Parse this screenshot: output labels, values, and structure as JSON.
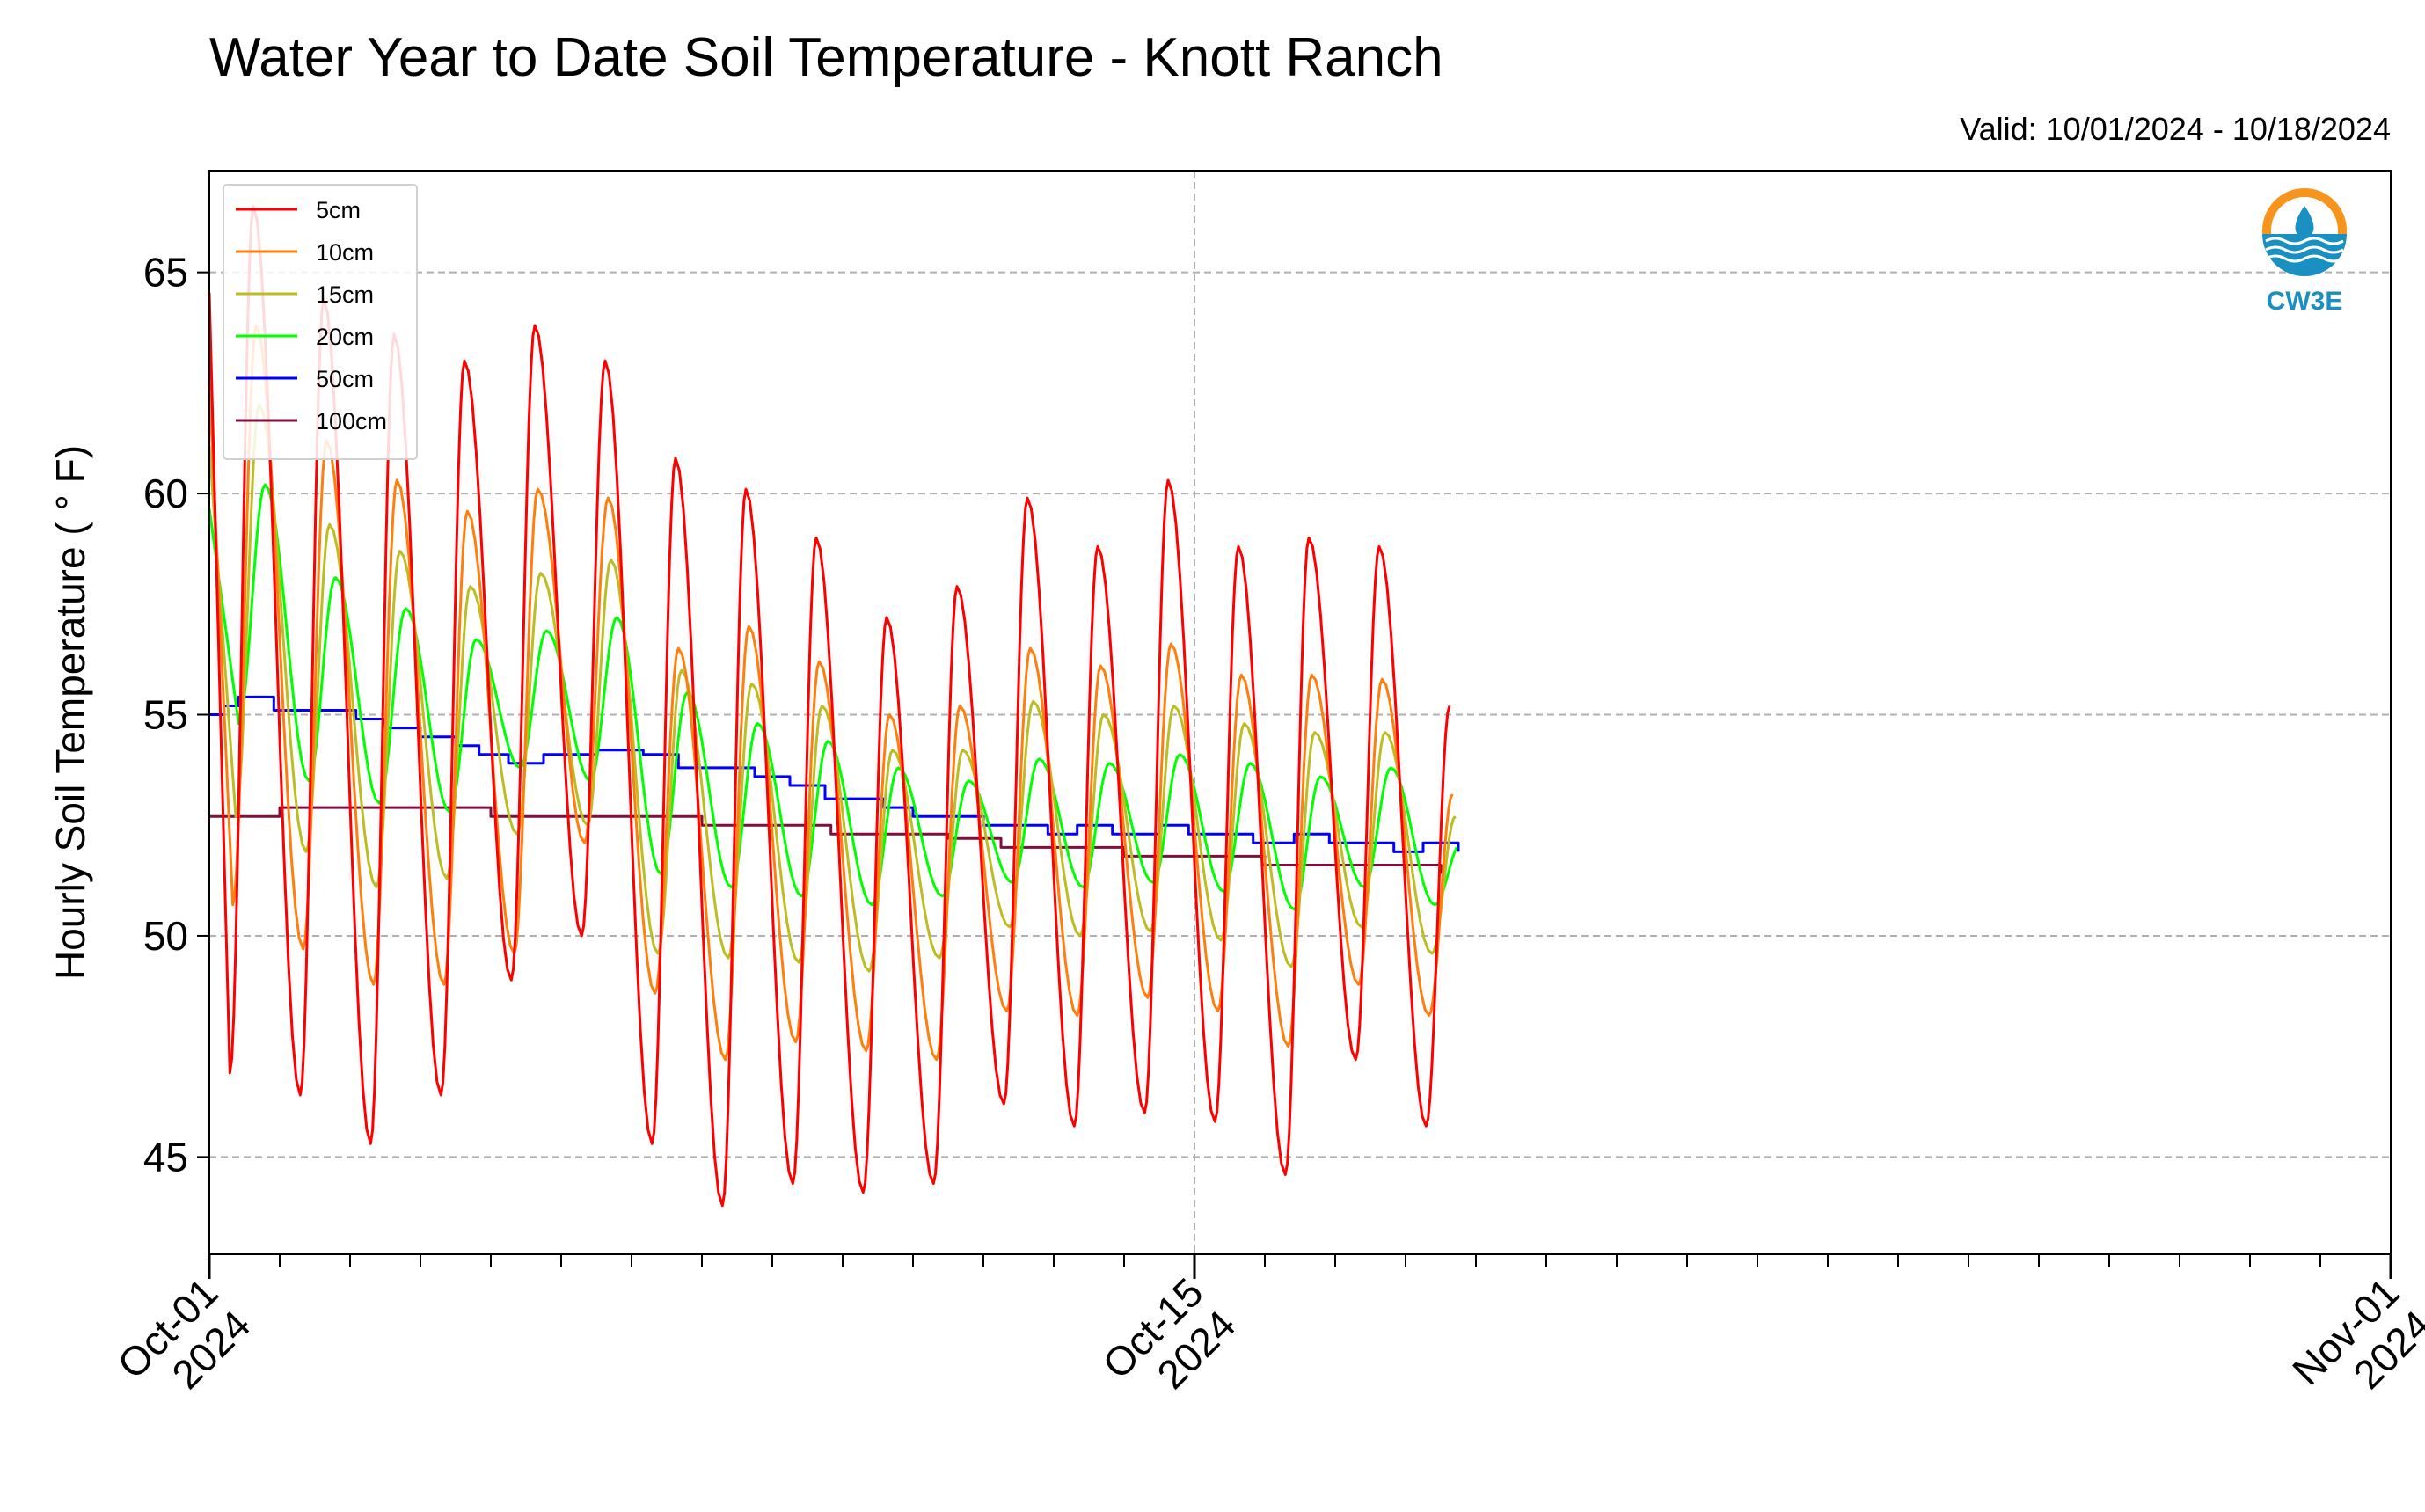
{
  "chart_data": {
    "type": "line",
    "title": "Water Year to Date Soil Temperature - Knott Ranch",
    "subtitle": "Valid: 10/01/2024 - 10/18/2024",
    "ylabel": "Hourly Soil Temperature ( ° F)",
    "xlabel": "",
    "xlim": [
      "2024-10-01",
      "2024-11-01"
    ],
    "ylim": [
      42.8,
      67.3
    ],
    "yticks": [
      45,
      50,
      55,
      60,
      65
    ],
    "xticks": [
      {
        "date": "2024-10-01",
        "label1": "Oct-01",
        "label2": "2024"
      },
      {
        "date": "2024-10-15",
        "label1": "Oct-15",
        "label2": "2024"
      },
      {
        "date": "2024-11-01",
        "label1": "Nov-01",
        "label2": "2024"
      }
    ],
    "grid": true,
    "legend_position": "top-left",
    "series": [
      {
        "name": "5cm",
        "color": "#ff0000",
        "daily": [
          {
            "date": "2024-10-01",
            "max": 66.5,
            "min": 46.9
          },
          {
            "date": "2024-10-02",
            "max": 64.4,
            "min": 46.4
          },
          {
            "date": "2024-10-03",
            "max": 63.6,
            "min": 45.3
          },
          {
            "date": "2024-10-04",
            "max": 63.0,
            "min": 46.4
          },
          {
            "date": "2024-10-05",
            "max": 63.8,
            "min": 49.0
          },
          {
            "date": "2024-10-06",
            "max": 63.0,
            "min": 50.0
          },
          {
            "date": "2024-10-07",
            "max": 60.8,
            "min": 45.3
          },
          {
            "date": "2024-10-08",
            "max": 60.1,
            "min": 43.9
          },
          {
            "date": "2024-10-09",
            "max": 59.0,
            "min": 44.4
          },
          {
            "date": "2024-10-10",
            "max": 57.2,
            "min": 44.2
          },
          {
            "date": "2024-10-11",
            "max": 57.9,
            "min": 44.4
          },
          {
            "date": "2024-10-12",
            "max": 59.9,
            "min": 46.2
          },
          {
            "date": "2024-10-13",
            "max": 58.8,
            "min": 45.7
          },
          {
            "date": "2024-10-14",
            "max": 60.3,
            "min": 46.0
          },
          {
            "date": "2024-10-15",
            "max": 58.8,
            "min": 45.8
          },
          {
            "date": "2024-10-16",
            "max": 59.0,
            "min": 44.6
          },
          {
            "date": "2024-10-17",
            "max": 58.8,
            "min": 47.2
          },
          {
            "date": "2024-10-18",
            "max": 55.2,
            "min": 45.7
          }
        ]
      },
      {
        "name": "10cm",
        "color": "#ff7f0e",
        "daily": [
          {
            "date": "2024-10-01",
            "max": 63.8,
            "min": 50.7
          },
          {
            "date": "2024-10-02",
            "max": 61.2,
            "min": 49.7
          },
          {
            "date": "2024-10-03",
            "max": 60.3,
            "min": 48.9
          },
          {
            "date": "2024-10-04",
            "max": 59.6,
            "min": 48.9
          },
          {
            "date": "2024-10-05",
            "max": 60.1,
            "min": 49.6
          },
          {
            "date": "2024-10-06",
            "max": 59.9,
            "min": 52.1
          },
          {
            "date": "2024-10-07",
            "max": 56.5,
            "min": 48.7
          },
          {
            "date": "2024-10-08",
            "max": 57.0,
            "min": 47.2
          },
          {
            "date": "2024-10-09",
            "max": 56.2,
            "min": 47.6
          },
          {
            "date": "2024-10-10",
            "max": 55.0,
            "min": 47.4
          },
          {
            "date": "2024-10-11",
            "max": 55.2,
            "min": 47.2
          },
          {
            "date": "2024-10-12",
            "max": 56.5,
            "min": 48.3
          },
          {
            "date": "2024-10-13",
            "max": 56.1,
            "min": 48.2
          },
          {
            "date": "2024-10-14",
            "max": 56.6,
            "min": 48.6
          },
          {
            "date": "2024-10-15",
            "max": 55.9,
            "min": 48.3
          },
          {
            "date": "2024-10-16",
            "max": 55.9,
            "min": 47.5
          },
          {
            "date": "2024-10-17",
            "max": 55.8,
            "min": 48.9
          },
          {
            "date": "2024-10-18",
            "max": 53.2,
            "min": 48.2
          }
        ]
      },
      {
        "name": "15cm",
        "color": "#bcbd22",
        "daily": [
          {
            "date": "2024-10-01",
            "max": 62.0,
            "min": 52.7
          },
          {
            "date": "2024-10-02",
            "max": 59.3,
            "min": 51.9
          },
          {
            "date": "2024-10-03",
            "max": 58.7,
            "min": 51.1
          },
          {
            "date": "2024-10-04",
            "max": 57.9,
            "min": 51.3
          },
          {
            "date": "2024-10-05",
            "max": 58.2,
            "min": 52.3
          },
          {
            "date": "2024-10-06",
            "max": 58.5,
            "min": 52.5
          },
          {
            "date": "2024-10-07",
            "max": 56.0,
            "min": 49.6
          },
          {
            "date": "2024-10-08",
            "max": 55.7,
            "min": 49.5
          },
          {
            "date": "2024-10-09",
            "max": 55.2,
            "min": 49.4
          },
          {
            "date": "2024-10-10",
            "max": 54.2,
            "min": 49.2
          },
          {
            "date": "2024-10-11",
            "max": 54.2,
            "min": 49.5
          },
          {
            "date": "2024-10-12",
            "max": 55.3,
            "min": 50.2
          },
          {
            "date": "2024-10-13",
            "max": 55.0,
            "min": 50.0
          },
          {
            "date": "2024-10-14",
            "max": 55.2,
            "min": 50.1
          },
          {
            "date": "2024-10-15",
            "max": 54.8,
            "min": 49.9
          },
          {
            "date": "2024-10-16",
            "max": 54.6,
            "min": 49.3
          },
          {
            "date": "2024-10-17",
            "max": 54.6,
            "min": 50.2
          },
          {
            "date": "2024-10-18",
            "max": 52.7,
            "min": 49.6
          }
        ]
      },
      {
        "name": "20cm",
        "color": "#00ff00",
        "daily": [
          {
            "date": "2024-10-01",
            "max": 60.2,
            "min": 54.8
          },
          {
            "date": "2024-10-02",
            "max": 58.1,
            "min": 53.5
          },
          {
            "date": "2024-10-03",
            "max": 57.4,
            "min": 53.0
          },
          {
            "date": "2024-10-04",
            "max": 56.7,
            "min": 52.8
          },
          {
            "date": "2024-10-05",
            "max": 56.9,
            "min": 53.8
          },
          {
            "date": "2024-10-06",
            "max": 57.2,
            "min": 53.5
          },
          {
            "date": "2024-10-07",
            "max": 55.5,
            "min": 51.4
          },
          {
            "date": "2024-10-08",
            "max": 54.8,
            "min": 51.1
          },
          {
            "date": "2024-10-09",
            "max": 54.4,
            "min": 50.9
          },
          {
            "date": "2024-10-10",
            "max": 53.8,
            "min": 50.7
          },
          {
            "date": "2024-10-11",
            "max": 53.5,
            "min": 50.9
          },
          {
            "date": "2024-10-12",
            "max": 54.0,
            "min": 51.2
          },
          {
            "date": "2024-10-13",
            "max": 53.9,
            "min": 51.1
          },
          {
            "date": "2024-10-14",
            "max": 54.1,
            "min": 51.2
          },
          {
            "date": "2024-10-15",
            "max": 53.9,
            "min": 51.0
          },
          {
            "date": "2024-10-16",
            "max": 53.6,
            "min": 50.6
          },
          {
            "date": "2024-10-17",
            "max": 53.8,
            "min": 51.1
          },
          {
            "date": "2024-10-18",
            "max": 52.1,
            "min": 50.7
          }
        ]
      },
      {
        "name": "50cm",
        "color": "#0000ff",
        "steps": [
          {
            "date": "2024-10-01T00",
            "y": 55.0
          },
          {
            "date": "2024-10-01T05",
            "y": 55.2
          },
          {
            "date": "2024-10-01T10",
            "y": 55.4
          },
          {
            "date": "2024-10-01T22",
            "y": 55.1
          },
          {
            "date": "2024-10-03T02",
            "y": 54.9
          },
          {
            "date": "2024-10-03T12",
            "y": 54.7
          },
          {
            "date": "2024-10-04T00",
            "y": 54.5
          },
          {
            "date": "2024-10-04T12",
            "y": 54.3
          },
          {
            "date": "2024-10-04T20",
            "y": 54.1
          },
          {
            "date": "2024-10-05T06",
            "y": 53.9
          },
          {
            "date": "2024-10-05T18",
            "y": 54.1
          },
          {
            "date": "2024-10-06T12",
            "y": 54.2
          },
          {
            "date": "2024-10-07T04",
            "y": 54.1
          },
          {
            "date": "2024-10-07T16",
            "y": 53.8
          },
          {
            "date": "2024-10-08T18",
            "y": 53.6
          },
          {
            "date": "2024-10-09T06",
            "y": 53.4
          },
          {
            "date": "2024-10-09T18",
            "y": 53.1
          },
          {
            "date": "2024-10-10T14",
            "y": 52.9
          },
          {
            "date": "2024-10-11T00",
            "y": 52.7
          },
          {
            "date": "2024-10-12T00",
            "y": 52.5
          },
          {
            "date": "2024-10-12T22",
            "y": 52.3
          },
          {
            "date": "2024-10-13T08",
            "y": 52.5
          },
          {
            "date": "2024-10-13T20",
            "y": 52.3
          },
          {
            "date": "2024-10-14T12",
            "y": 52.5
          },
          {
            "date": "2024-10-14T22",
            "y": 52.3
          },
          {
            "date": "2024-10-15T20",
            "y": 52.1
          },
          {
            "date": "2024-10-16T10",
            "y": 52.3
          },
          {
            "date": "2024-10-16T22",
            "y": 52.1
          },
          {
            "date": "2024-10-17T08",
            "y": 52.1
          },
          {
            "date": "2024-10-17T20",
            "y": 51.9
          },
          {
            "date": "2024-10-18T06",
            "y": 52.1
          },
          {
            "date": "2024-10-18T18",
            "y": 51.9
          }
        ]
      },
      {
        "name": "100cm",
        "color": "#7f0f3f",
        "steps": [
          {
            "date": "2024-10-01T00",
            "y": 52.7
          },
          {
            "date": "2024-10-02T00",
            "y": 52.9
          },
          {
            "date": "2024-10-05T00",
            "y": 52.7
          },
          {
            "date": "2024-10-08T00",
            "y": 52.5
          },
          {
            "date": "2024-10-09T20",
            "y": 52.3
          },
          {
            "date": "2024-10-10T18",
            "y": 52.3
          },
          {
            "date": "2024-10-11T12",
            "y": 52.2
          },
          {
            "date": "2024-10-12T06",
            "y": 52.0
          },
          {
            "date": "2024-10-14T00",
            "y": 51.8
          },
          {
            "date": "2024-10-15T18",
            "y": 51.8
          },
          {
            "date": "2024-10-16T00",
            "y": 51.6
          },
          {
            "date": "2024-10-18T12",
            "y": 51.4
          }
        ]
      }
    ]
  },
  "logo": {
    "text": "CW3E",
    "color": "#1a8fc2",
    "accent": "#f7941d"
  }
}
